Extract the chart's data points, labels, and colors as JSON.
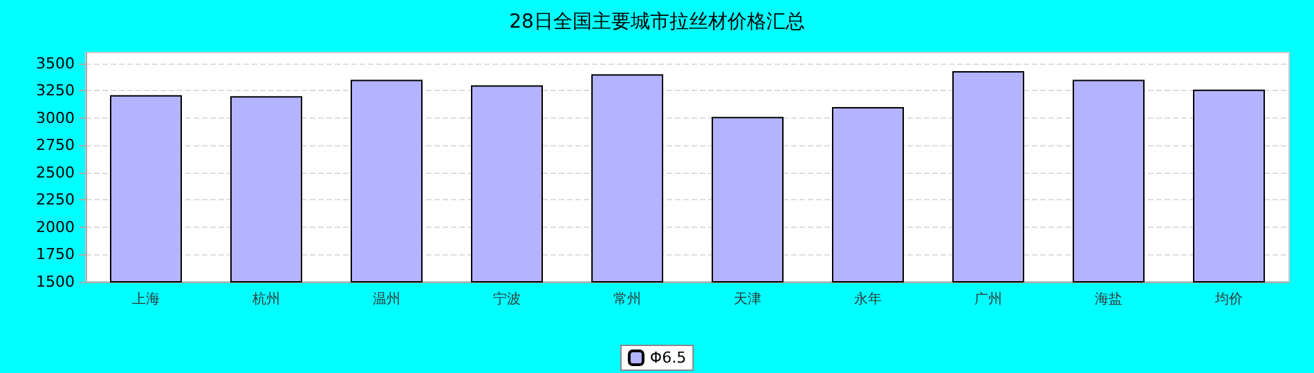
{
  "chart_data": {
    "type": "bar",
    "title": "28日全国主要城市拉丝材价格汇总",
    "categories": [
      "上海",
      "杭州",
      "温州",
      "宁波",
      "常州",
      "天津",
      "永年",
      "广州",
      "海盐",
      "均价"
    ],
    "series": [
      {
        "name": "Φ6.5",
        "color": "#b3b3ff",
        "values": [
          3210,
          3200,
          3350,
          3300,
          3400,
          3010,
          3100,
          3430,
          3350,
          3260
        ]
      }
    ],
    "ylim": [
      1500,
      3600
    ],
    "yticks": [
      1500,
      1750,
      2000,
      2250,
      2500,
      2750,
      3000,
      3250,
      3500
    ],
    "grid": "y",
    "legend": "bottom"
  }
}
